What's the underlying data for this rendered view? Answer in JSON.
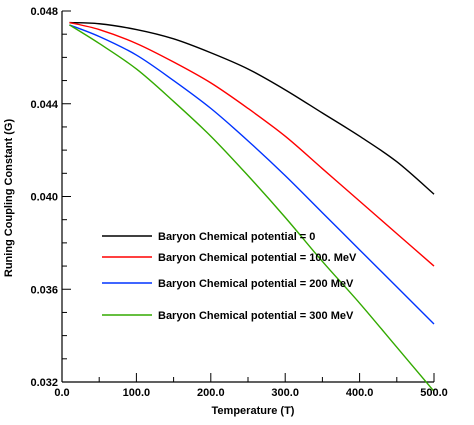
{
  "chart_data": {
    "type": "line",
    "xlabel": "Temperature (T)",
    "ylabel": "Runing Coupling Constant (G)",
    "xlim": [
      0,
      500
    ],
    "ylim": [
      0.032,
      0.048
    ],
    "x_ticks": [
      {
        "value": 0,
        "label": "0.0"
      },
      {
        "value": 100,
        "label": "100.0"
      },
      {
        "value": 200,
        "label": "200.0"
      },
      {
        "value": 300,
        "label": "300.0"
      },
      {
        "value": 400,
        "label": "400.0"
      },
      {
        "value": 500,
        "label": "500.0"
      }
    ],
    "y_ticks": [
      {
        "value": 0.032,
        "label": "0.032"
      },
      {
        "value": 0.036,
        "label": "0.036"
      },
      {
        "value": 0.04,
        "label": "0.040"
      },
      {
        "value": 0.044,
        "label": "0.044"
      },
      {
        "value": 0.048,
        "label": "0.048"
      }
    ],
    "grid": false,
    "legend_position": "center-left",
    "series": [
      {
        "name": "Baryon Chemical potential = 0",
        "color": "#000000",
        "x": [
          10,
          50,
          100,
          150,
          200,
          250,
          300,
          350,
          400,
          450,
          500
        ],
        "y": [
          0.0475,
          0.04745,
          0.0472,
          0.0468,
          0.0462,
          0.0455,
          0.0446,
          0.0436,
          0.0426,
          0.0415,
          0.0401
        ]
      },
      {
        "name": "Baryon Chemical potential = 100. MeV",
        "color": "#ff0000",
        "x": [
          10,
          50,
          100,
          150,
          200,
          250,
          300,
          350,
          400,
          450,
          500
        ],
        "y": [
          0.0475,
          0.0472,
          0.0466,
          0.0458,
          0.0449,
          0.0438,
          0.0426,
          0.0412,
          0.0398,
          0.0384,
          0.037
        ]
      },
      {
        "name": "Baryon Chemical potential = 200 MeV",
        "color": "#0033ff",
        "x": [
          10,
          50,
          100,
          150,
          200,
          250,
          300,
          350,
          400,
          450,
          500
        ],
        "y": [
          0.0474,
          0.0469,
          0.0461,
          0.045,
          0.0438,
          0.0424,
          0.0409,
          0.0393,
          0.0377,
          0.0361,
          0.0345
        ]
      },
      {
        "name": "Baryon Chemical potential = 300 MeV",
        "color": "#33aa00",
        "x": [
          10,
          50,
          100,
          150,
          200,
          250,
          300,
          350,
          400,
          450,
          500
        ],
        "y": [
          0.0474,
          0.0466,
          0.0455,
          0.0441,
          0.0426,
          0.0409,
          0.0391,
          0.0372,
          0.0354,
          0.0335,
          0.0316
        ]
      }
    ]
  }
}
